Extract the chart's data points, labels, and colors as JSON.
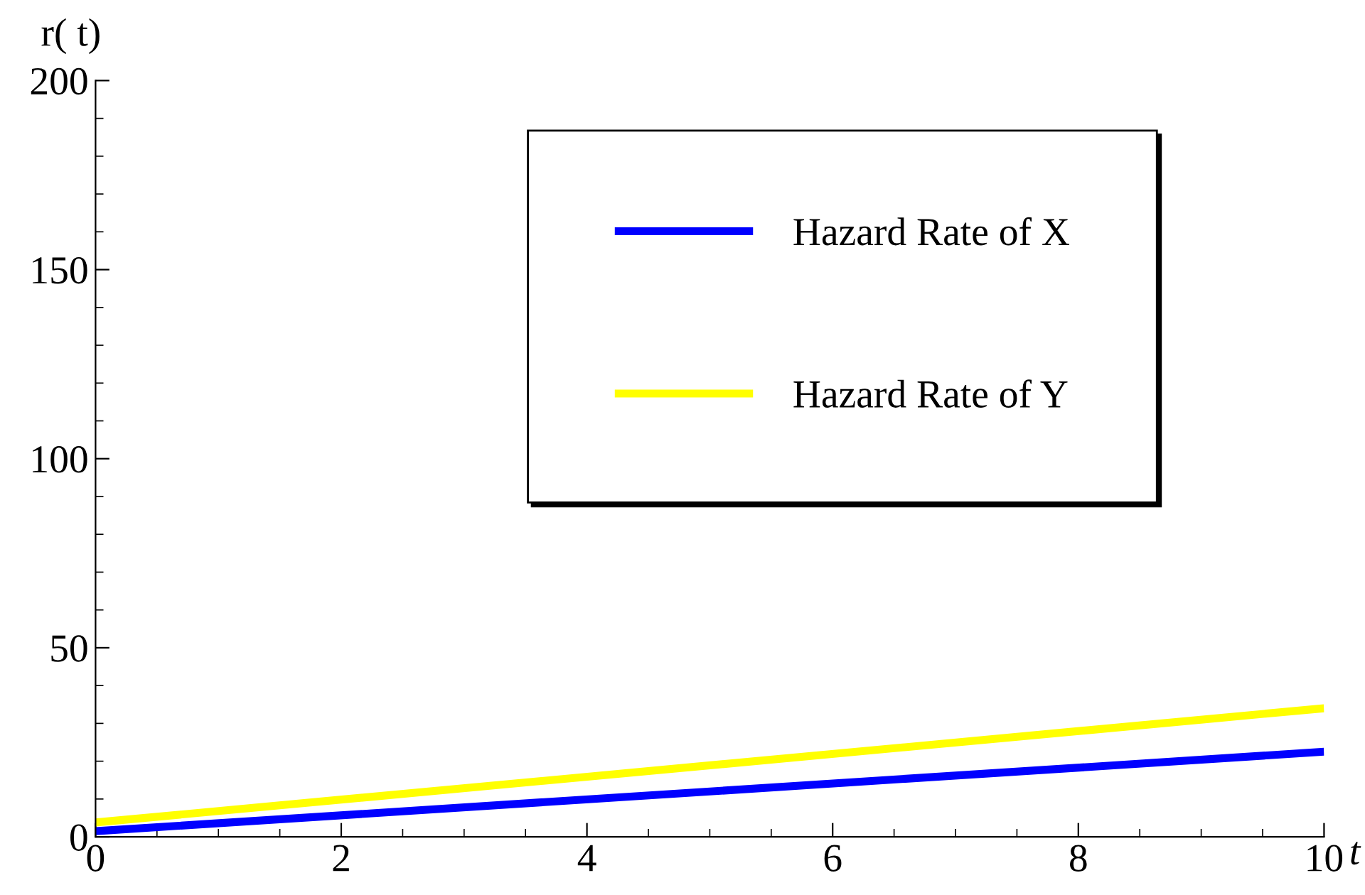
{
  "chart_data": {
    "type": "line",
    "xlabel": "t",
    "ylabel": "r( t)",
    "x": [
      0,
      10
    ],
    "series": [
      {
        "name": "Hazard Rate of X",
        "color": "#0000ff",
        "values": [
          1.5,
          22.5
        ]
      },
      {
        "name": "Hazard Rate of Y",
        "color": "#ffff00",
        "values": [
          3.8,
          34
        ]
      }
    ],
    "xlim": [
      0,
      10
    ],
    "ylim": [
      0,
      200
    ],
    "xticks": [
      0,
      2,
      4,
      6,
      8,
      10
    ],
    "yticks": [
      0,
      50,
      100,
      150,
      200
    ],
    "legend": "top right",
    "grid": false,
    "line_style": "solid",
    "marker": "none"
  }
}
